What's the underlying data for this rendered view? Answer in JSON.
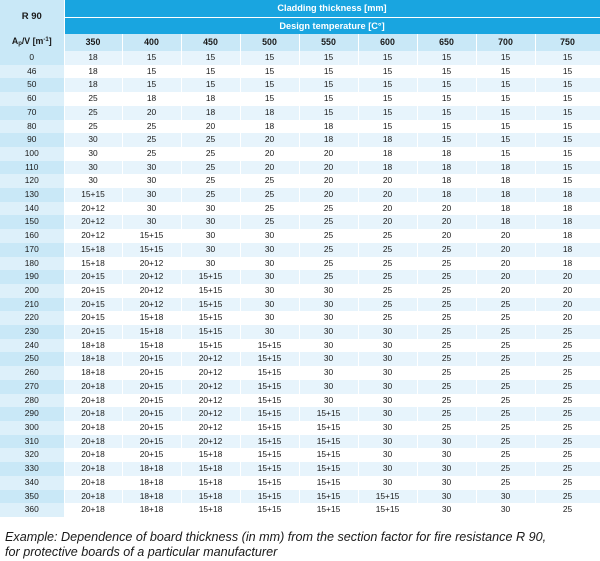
{
  "table": {
    "corner": "R 90",
    "title": "Cladding thickness [mm]",
    "subtitle": "Design temperature [C°]",
    "row_header": {
      "main": "A",
      "sub": "p",
      "mid": "/V [m",
      "sup": "-1",
      "end": "]"
    },
    "columns": [
      "350",
      "400",
      "450",
      "500",
      "550",
      "600",
      "650",
      "700",
      "750"
    ],
    "rows": [
      {
        "label": "0",
        "cells": [
          "18",
          "15",
          "15",
          "15",
          "15",
          "15",
          "15",
          "15",
          "15"
        ]
      },
      {
        "label": "46",
        "cells": [
          "18",
          "15",
          "15",
          "15",
          "15",
          "15",
          "15",
          "15",
          "15"
        ]
      },
      {
        "label": "50",
        "cells": [
          "18",
          "15",
          "15",
          "15",
          "15",
          "15",
          "15",
          "15",
          "15"
        ]
      },
      {
        "label": "60",
        "cells": [
          "25",
          "18",
          "18",
          "15",
          "15",
          "15",
          "15",
          "15",
          "15"
        ]
      },
      {
        "label": "70",
        "cells": [
          "25",
          "20",
          "18",
          "18",
          "15",
          "15",
          "15",
          "15",
          "15"
        ]
      },
      {
        "label": "80",
        "cells": [
          "25",
          "25",
          "20",
          "18",
          "18",
          "15",
          "15",
          "15",
          "15"
        ]
      },
      {
        "label": "90",
        "cells": [
          "30",
          "25",
          "25",
          "20",
          "18",
          "18",
          "15",
          "15",
          "15"
        ]
      },
      {
        "label": "100",
        "cells": [
          "30",
          "25",
          "25",
          "20",
          "20",
          "18",
          "18",
          "15",
          "15"
        ]
      },
      {
        "label": "110",
        "cells": [
          "30",
          "30",
          "25",
          "20",
          "20",
          "18",
          "18",
          "18",
          "15"
        ]
      },
      {
        "label": "120",
        "cells": [
          "30",
          "30",
          "25",
          "25",
          "20",
          "20",
          "18",
          "18",
          "15"
        ]
      },
      {
        "label": "130",
        "cells": [
          "15+15",
          "30",
          "25",
          "25",
          "20",
          "20",
          "18",
          "18",
          "18"
        ]
      },
      {
        "label": "140",
        "cells": [
          "20+12",
          "30",
          "30",
          "25",
          "25",
          "20",
          "20",
          "18",
          "18"
        ]
      },
      {
        "label": "150",
        "cells": [
          "20+12",
          "30",
          "30",
          "25",
          "25",
          "20",
          "20",
          "18",
          "18"
        ]
      },
      {
        "label": "160",
        "cells": [
          "20+12",
          "15+15",
          "30",
          "30",
          "25",
          "25",
          "20",
          "20",
          "18"
        ]
      },
      {
        "label": "170",
        "cells": [
          "15+18",
          "15+15",
          "30",
          "30",
          "25",
          "25",
          "25",
          "20",
          "18"
        ]
      },
      {
        "label": "180",
        "cells": [
          "15+18",
          "20+12",
          "30",
          "30",
          "25",
          "25",
          "25",
          "20",
          "18"
        ]
      },
      {
        "label": "190",
        "cells": [
          "20+15",
          "20+12",
          "15+15",
          "30",
          "25",
          "25",
          "25",
          "20",
          "20"
        ]
      },
      {
        "label": "200",
        "cells": [
          "20+15",
          "20+12",
          "15+15",
          "30",
          "30",
          "25",
          "25",
          "20",
          "20"
        ]
      },
      {
        "label": "210",
        "cells": [
          "20+15",
          "20+12",
          "15+15",
          "30",
          "30",
          "25",
          "25",
          "25",
          "20"
        ]
      },
      {
        "label": "220",
        "cells": [
          "20+15",
          "15+18",
          "15+15",
          "30",
          "30",
          "25",
          "25",
          "25",
          "20"
        ]
      },
      {
        "label": "230",
        "cells": [
          "20+15",
          "15+18",
          "15+15",
          "30",
          "30",
          "30",
          "25",
          "25",
          "25"
        ]
      },
      {
        "label": "240",
        "cells": [
          "18+18",
          "15+18",
          "15+15",
          "15+15",
          "30",
          "30",
          "25",
          "25",
          "25"
        ]
      },
      {
        "label": "250",
        "cells": [
          "18+18",
          "20+15",
          "20+12",
          "15+15",
          "30",
          "30",
          "25",
          "25",
          "25"
        ]
      },
      {
        "label": "260",
        "cells": [
          "18+18",
          "20+15",
          "20+12",
          "15+15",
          "30",
          "30",
          "25",
          "25",
          "25"
        ]
      },
      {
        "label": "270",
        "cells": [
          "20+18",
          "20+15",
          "20+12",
          "15+15",
          "30",
          "30",
          "25",
          "25",
          "25"
        ]
      },
      {
        "label": "280",
        "cells": [
          "20+18",
          "20+15",
          "20+12",
          "15+15",
          "30",
          "30",
          "25",
          "25",
          "25"
        ]
      },
      {
        "label": "290",
        "cells": [
          "20+18",
          "20+15",
          "20+12",
          "15+15",
          "15+15",
          "30",
          "25",
          "25",
          "25"
        ]
      },
      {
        "label": "300",
        "cells": [
          "20+18",
          "20+15",
          "20+12",
          "15+15",
          "15+15",
          "30",
          "25",
          "25",
          "25"
        ]
      },
      {
        "label": "310",
        "cells": [
          "20+18",
          "20+15",
          "20+12",
          "15+15",
          "15+15",
          "30",
          "30",
          "25",
          "25"
        ]
      },
      {
        "label": "320",
        "cells": [
          "20+18",
          "20+15",
          "15+18",
          "15+15",
          "15+15",
          "30",
          "30",
          "25",
          "25"
        ]
      },
      {
        "label": "330",
        "cells": [
          "20+18",
          "18+18",
          "15+18",
          "15+15",
          "15+15",
          "30",
          "30",
          "25",
          "25"
        ]
      },
      {
        "label": "340",
        "cells": [
          "20+18",
          "18+18",
          "15+18",
          "15+15",
          "15+15",
          "30",
          "30",
          "25",
          "25"
        ]
      },
      {
        "label": "350",
        "cells": [
          "20+18",
          "18+18",
          "15+18",
          "15+15",
          "15+15",
          "15+15",
          "30",
          "30",
          "25"
        ]
      },
      {
        "label": "360",
        "cells": [
          "20+18",
          "18+18",
          "15+18",
          "15+15",
          "15+15",
          "15+15",
          "30",
          "30",
          "25"
        ]
      }
    ]
  },
  "caption": {
    "line1": "Example: Dependence of board thickness (in mm) from the section factor for fire resistance R 90,",
    "line2": "for protective boards of a particular manufacturer"
  }
}
